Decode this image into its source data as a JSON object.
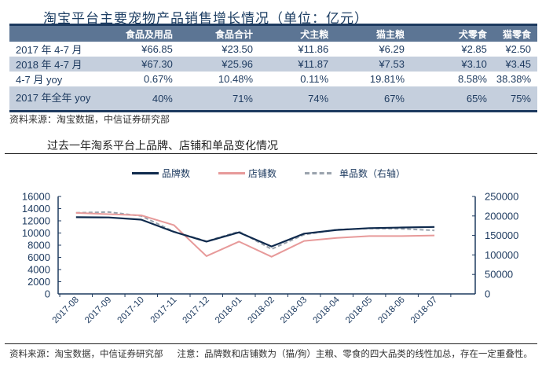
{
  "table": {
    "title": "淘宝平台主要宠物产品销售增长情况（单位：亿元）",
    "columns": [
      "",
      "食品及用品",
      "食品合计",
      "犬主粮",
      "猫主粮",
      "犬零食",
      "猫零食"
    ],
    "rows": [
      {
        "label": "2017 年 4-7 月",
        "values": [
          "¥66.85",
          "¥23.50",
          "¥11.86",
          "¥6.29",
          "¥2.85",
          "¥2.50"
        ]
      },
      {
        "label": "2018 年 4-7 月",
        "values": [
          "¥67.30",
          "¥25.96",
          "¥11.87",
          "¥7.53",
          "¥3.10",
          "¥3.45"
        ]
      },
      {
        "label": "4-7 月 yoy",
        "values": [
          "0.67%",
          "10.48%",
          "0.11%",
          "19.81%",
          "8.58%",
          "38.38%"
        ]
      },
      {
        "label": "2017 年全年 yoy",
        "values": [
          "40%",
          "71%",
          "74%",
          "67%",
          "65%",
          "75%"
        ]
      }
    ],
    "source": "资料来源：淘宝数据，中信证券研究部",
    "colors": {
      "header_bg": "#5c7594",
      "shade_bg": "#c5cfdd",
      "rule": "#1d3a5f"
    }
  },
  "chart_section": {
    "title": "过去一年淘系平台上品牌、店铺和单品变化情况",
    "source": "资料来源：淘宝数据，中信证券研究部",
    "note": "注意：品牌数和店铺数为（猫/狗）主粮、零食的四大品类的线性加总，存在一定重叠性。"
  },
  "chart_data": {
    "type": "line",
    "title": "过去一年淘系平台上品牌、店铺和单品变化情况",
    "x": [
      "2017-08",
      "2017-09",
      "2017-10",
      "2017-11",
      "2017-12",
      "2018-01",
      "2018-02",
      "2018-03",
      "2018-04",
      "2018-05",
      "2018-06",
      "2018-07"
    ],
    "series": [
      {
        "name": "品牌数",
        "axis": "left",
        "color": "#0f2a4d",
        "style": "solid",
        "values": [
          12600,
          12550,
          12200,
          10200,
          8600,
          10100,
          7800,
          9900,
          10500,
          10800,
          10900,
          11000
        ]
      },
      {
        "name": "店铺数",
        "axis": "left",
        "color": "#e79a9a",
        "style": "solid",
        "values": [
          13300,
          13100,
          12900,
          11300,
          6200,
          8600,
          6100,
          8700,
          9200,
          9500,
          9500,
          9600
        ]
      },
      {
        "name": "单品数（右轴）",
        "axis": "right",
        "color": "#9aa3ad",
        "style": "dashed",
        "values": [
          208000,
          210000,
          200000,
          160000,
          135000,
          160000,
          115000,
          152000,
          165000,
          168000,
          167000,
          163000
        ]
      }
    ],
    "y_left": {
      "ylim": [
        0,
        16000
      ],
      "ticks": [
        0,
        2000,
        4000,
        6000,
        8000,
        10000,
        12000,
        14000,
        16000
      ]
    },
    "y_right": {
      "ylim": [
        0,
        250000
      ],
      "ticks": [
        0,
        50000,
        100000,
        150000,
        200000,
        250000
      ]
    },
    "legend_position": "top",
    "grid": false
  }
}
